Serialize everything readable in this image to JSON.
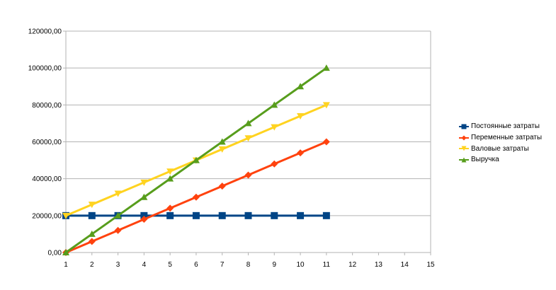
{
  "chart_data": {
    "type": "line",
    "title": "",
    "xlabel": "",
    "ylabel": "",
    "x": [
      1,
      2,
      3,
      4,
      5,
      6,
      7,
      8,
      9,
      10,
      11
    ],
    "xlim": [
      1,
      15
    ],
    "x_ticks": [
      "1",
      "2",
      "3",
      "4",
      "5",
      "6",
      "7",
      "8",
      "9",
      "10",
      "11",
      "12",
      "13",
      "14",
      "15"
    ],
    "ylim": [
      0,
      120000
    ],
    "y_ticks": [
      "0,00",
      "20000,00",
      "40000,00",
      "60000,00",
      "80000,00",
      "100000,00",
      "120000,00"
    ],
    "y_tick_values": [
      0,
      20000,
      40000,
      60000,
      80000,
      100000,
      120000
    ],
    "grid": "horizontal",
    "legend_position": "right",
    "series": [
      {
        "name": "Постоянные затраты",
        "color": "#004586",
        "marker": "square",
        "values": [
          20000,
          20000,
          20000,
          20000,
          20000,
          20000,
          20000,
          20000,
          20000,
          20000,
          20000
        ]
      },
      {
        "name": "Переменные затраты",
        "color": "#ff420e",
        "marker": "diamond",
        "values": [
          0,
          6000,
          12000,
          18000,
          24000,
          30000,
          36000,
          42000,
          48000,
          54000,
          60000
        ]
      },
      {
        "name": "Валовые затраты",
        "color": "#ffd320",
        "marker": "triangle-down",
        "values": [
          20000,
          26000,
          32000,
          38000,
          44000,
          50000,
          56000,
          62000,
          68000,
          74000,
          80000
        ]
      },
      {
        "name": "Выручка",
        "color": "#579d1c",
        "marker": "triangle-up",
        "values": [
          0,
          10000,
          20000,
          30000,
          40000,
          50000,
          60000,
          70000,
          80000,
          90000,
          100000
        ]
      }
    ]
  }
}
